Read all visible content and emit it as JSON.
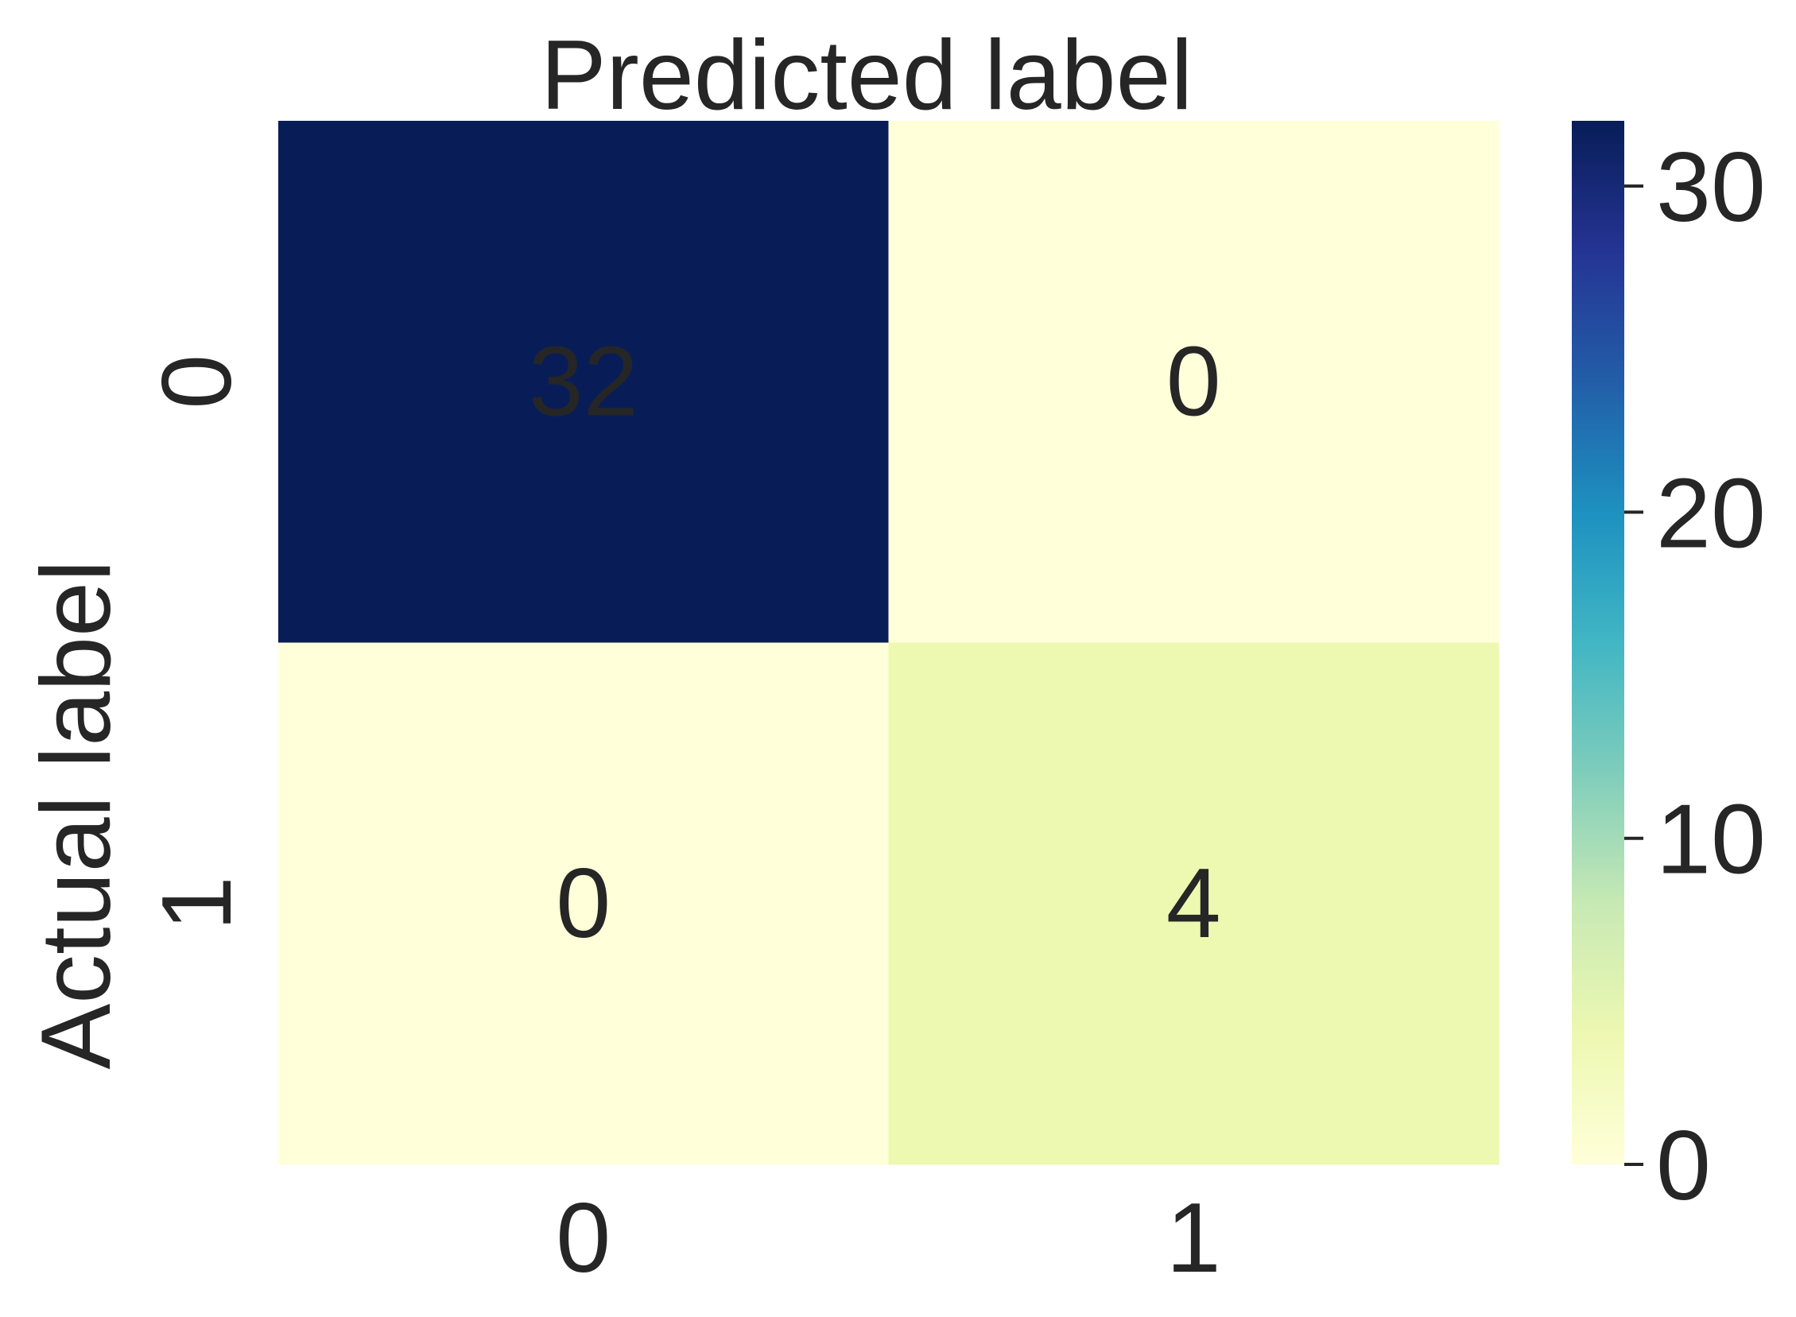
{
  "chart_data": {
    "type": "heatmap",
    "title": "",
    "xlabel": "Predicted label",
    "ylabel": "Actual label",
    "x_categories": [
      "0",
      "1"
    ],
    "y_categories": [
      "0",
      "1"
    ],
    "values": [
      [
        32,
        0
      ],
      [
        0,
        4
      ]
    ],
    "colormap": "YlGnBu",
    "colorbar": {
      "min": 0,
      "max": 32,
      "ticks": [
        0,
        10,
        20,
        30
      ]
    },
    "colors": {
      "low": "#ffffd9",
      "high": "#081d58",
      "annot_dark": "#ffffff",
      "annot_light": "#262626"
    }
  }
}
